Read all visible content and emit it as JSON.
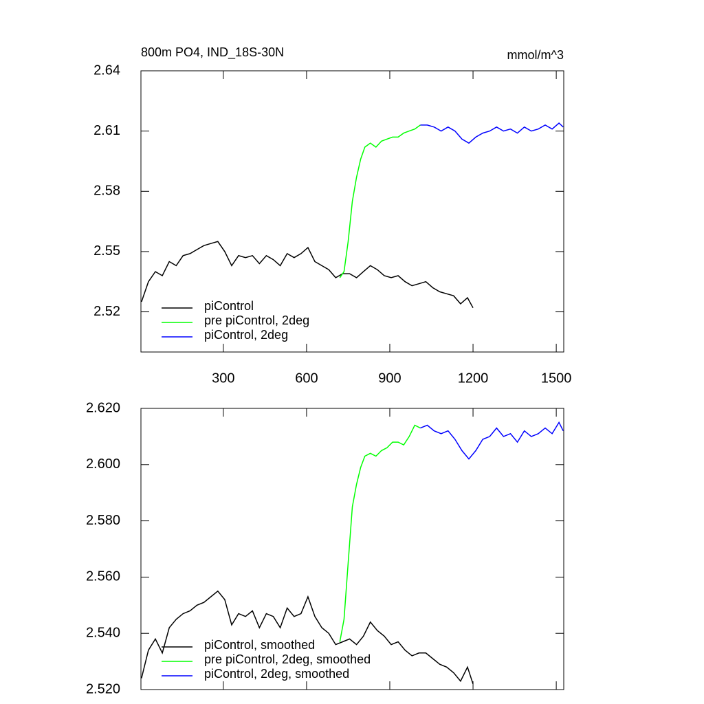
{
  "chart_data": [
    {
      "type": "line",
      "title": "800m PO4, IND_18S-30N",
      "units": "mmol/m^3",
      "legend": "lower left",
      "xlim": [
        3,
        1527
      ],
      "xticks": [
        300,
        600,
        900,
        1200,
        1500
      ],
      "ylim": [
        2.5,
        2.64
      ],
      "yticks": [
        2.52,
        2.55,
        2.58,
        2.61,
        2.64
      ],
      "series": [
        {
          "name": "piControl",
          "color": "#000000",
          "x": [
            5,
            30,
            55,
            80,
            105,
            130,
            155,
            180,
            205,
            230,
            255,
            280,
            305,
            330,
            355,
            380,
            405,
            430,
            455,
            480,
            505,
            530,
            555,
            580,
            605,
            630,
            655,
            680,
            705,
            730,
            755,
            780,
            805,
            830,
            855,
            880,
            905,
            930,
            955,
            980,
            1005,
            1030,
            1055,
            1080,
            1105,
            1130,
            1155,
            1180,
            1200
          ],
          "values": [
            2.525,
            2.535,
            2.54,
            2.538,
            2.545,
            2.543,
            2.548,
            2.549,
            2.551,
            2.553,
            2.554,
            2.555,
            2.55,
            2.543,
            2.548,
            2.547,
            2.548,
            2.544,
            2.548,
            2.546,
            2.543,
            2.549,
            2.547,
            2.549,
            2.552,
            2.545,
            2.543,
            2.541,
            2.537,
            2.539,
            2.539,
            2.537,
            2.54,
            2.543,
            2.541,
            2.538,
            2.537,
            2.538,
            2.535,
            2.533,
            2.534,
            2.535,
            2.532,
            2.53,
            2.529,
            2.528,
            2.524,
            2.527,
            2.522
          ]
        },
        {
          "name": "pre piControl, 2deg",
          "color": "#00ff00",
          "x": [
            720,
            735,
            750,
            765,
            780,
            795,
            810,
            830,
            850,
            870,
            890,
            910,
            930,
            950,
            970,
            990,
            1010
          ],
          "values": [
            2.537,
            2.54,
            2.555,
            2.575,
            2.587,
            2.596,
            2.602,
            2.604,
            2.602,
            2.605,
            2.606,
            2.607,
            2.607,
            2.609,
            2.61,
            2.611,
            2.613
          ]
        },
        {
          "name": "piControl, 2deg",
          "color": "#0000ff",
          "x": [
            1010,
            1035,
            1060,
            1085,
            1110,
            1135,
            1160,
            1185,
            1210,
            1235,
            1260,
            1285,
            1310,
            1335,
            1360,
            1385,
            1410,
            1435,
            1460,
            1485,
            1510,
            1525
          ],
          "values": [
            2.613,
            2.613,
            2.612,
            2.61,
            2.612,
            2.61,
            2.606,
            2.604,
            2.607,
            2.609,
            2.61,
            2.612,
            2.61,
            2.611,
            2.609,
            2.612,
            2.61,
            2.611,
            2.613,
            2.611,
            2.614,
            2.612
          ]
        }
      ]
    },
    {
      "type": "line",
      "legend": "lower left",
      "xlim": [
        3,
        1527
      ],
      "xticks": [
        300,
        600,
        900,
        1200,
        1500
      ],
      "ylim": [
        2.52,
        2.62
      ],
      "yticks": [
        {
          "value": 2.52,
          "label": "2.520"
        },
        {
          "value": 2.54,
          "label": "2.540"
        },
        {
          "value": 2.56,
          "label": "2.560"
        },
        {
          "value": 2.58,
          "label": "2.580"
        },
        {
          "value": 2.6,
          "label": "2.600"
        },
        {
          "value": 2.62,
          "label": "2.620"
        }
      ],
      "series": [
        {
          "name": "piControl, smoothed",
          "color": "#000000",
          "x": [
            5,
            30,
            55,
            80,
            105,
            130,
            155,
            180,
            205,
            230,
            255,
            280,
            305,
            330,
            355,
            380,
            405,
            430,
            455,
            480,
            505,
            530,
            555,
            580,
            605,
            630,
            655,
            680,
            705,
            730,
            755,
            780,
            805,
            830,
            855,
            880,
            905,
            930,
            955,
            980,
            1005,
            1030,
            1055,
            1080,
            1105,
            1130,
            1155,
            1180,
            1200
          ],
          "values": [
            2.524,
            2.534,
            2.538,
            2.533,
            2.542,
            2.545,
            2.547,
            2.548,
            2.55,
            2.551,
            2.553,
            2.555,
            2.552,
            2.543,
            2.547,
            2.546,
            2.548,
            2.542,
            2.547,
            2.546,
            2.542,
            2.549,
            2.546,
            2.547,
            2.553,
            2.546,
            2.542,
            2.54,
            2.536,
            2.537,
            2.538,
            2.536,
            2.539,
            2.544,
            2.541,
            2.539,
            2.536,
            2.537,
            2.534,
            2.532,
            2.533,
            2.533,
            2.531,
            2.529,
            2.528,
            2.526,
            2.523,
            2.528,
            2.522
          ]
        },
        {
          "name": "pre piControl, 2deg, smoothed",
          "color": "#00ff00",
          "x": [
            720,
            735,
            750,
            765,
            780,
            795,
            810,
            830,
            850,
            870,
            890,
            910,
            930,
            950,
            970,
            990,
            1010
          ],
          "values": [
            2.537,
            2.545,
            2.565,
            2.585,
            2.593,
            2.599,
            2.603,
            2.604,
            2.603,
            2.605,
            2.606,
            2.608,
            2.608,
            2.607,
            2.61,
            2.614,
            2.613
          ]
        },
        {
          "name": "piControl, 2deg, smoothed",
          "color": "#0000ff",
          "x": [
            1010,
            1035,
            1060,
            1085,
            1110,
            1135,
            1160,
            1185,
            1210,
            1235,
            1260,
            1285,
            1310,
            1335,
            1360,
            1385,
            1410,
            1435,
            1460,
            1485,
            1510,
            1525
          ],
          "values": [
            2.613,
            2.614,
            2.612,
            2.611,
            2.612,
            2.609,
            2.605,
            2.602,
            2.605,
            2.609,
            2.61,
            2.613,
            2.61,
            2.611,
            2.608,
            2.612,
            2.61,
            2.611,
            2.613,
            2.611,
            2.615,
            2.612
          ]
        }
      ]
    }
  ]
}
